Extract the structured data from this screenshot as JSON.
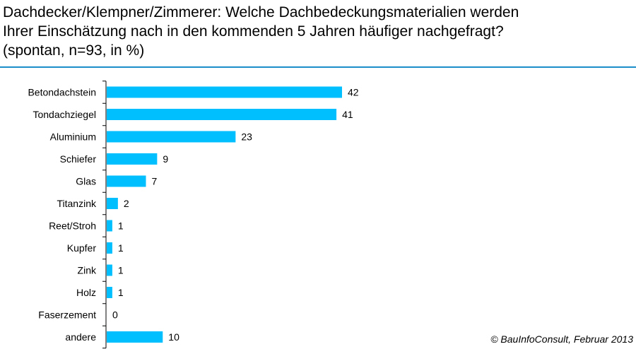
{
  "title": {
    "line1": "Dachdecker/Klempner/Zimmerer: Welche Dachbedeckungsmaterialien werden",
    "line2": "Ihrer Einschätzung nach in den kommenden 5 Jahren häufiger nachgefragt?",
    "line3": "(spontan, n=93, in %)"
  },
  "source": "© BauInfoConsult, Februar 2013",
  "colors": {
    "bar": "#00bfff",
    "rule": "#1b8ec9"
  },
  "chart_data": {
    "type": "bar",
    "orientation": "horizontal",
    "categories": [
      "Betondachstein",
      "Tondachziegel",
      "Aluminium",
      "Schiefer",
      "Glas",
      "Titanzink",
      "Reet/Stroh",
      "Kupfer",
      "Zink",
      "Holz",
      "Faserzement",
      "andere"
    ],
    "values": [
      42,
      41,
      23,
      9,
      7,
      2,
      1,
      1,
      1,
      1,
      0,
      10
    ],
    "xlim": [
      0,
      42
    ],
    "data_labels": true,
    "grid": false,
    "legend": "none"
  }
}
